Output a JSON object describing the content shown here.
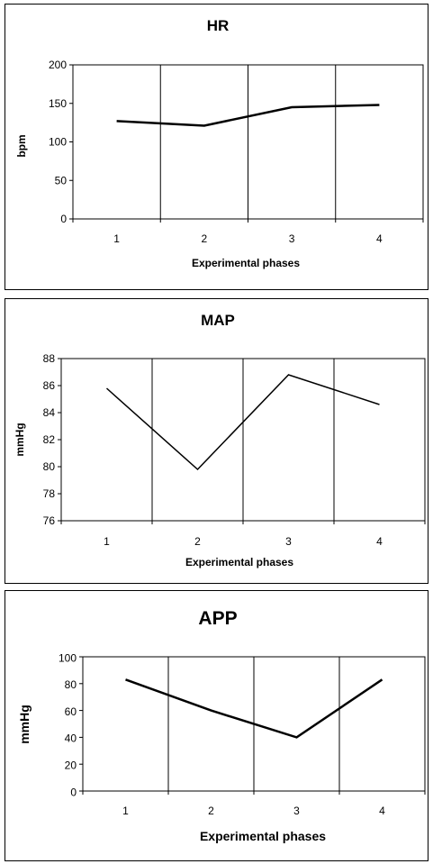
{
  "chart_data": [
    {
      "type": "line",
      "title": "HR",
      "xlabel": "Experimental phases",
      "ylabel": "bpm",
      "categories": [
        "1",
        "2",
        "3",
        "4"
      ],
      "series": [
        {
          "values": [
            127,
            121,
            145,
            148
          ]
        }
      ],
      "ylim": [
        0,
        200
      ],
      "yticks": [
        "0",
        "50",
        "100",
        "150",
        "200"
      ],
      "grid": "vertical separators between categories",
      "line_color": "#000000"
    },
    {
      "type": "line",
      "title": "MAP",
      "xlabel": "Experimental phases",
      "ylabel": "mmHg",
      "categories": [
        "1",
        "2",
        "3",
        "4"
      ],
      "series": [
        {
          "values": [
            85.8,
            79.8,
            86.8,
            84.6
          ]
        }
      ],
      "ylim": [
        76,
        88
      ],
      "yticks": [
        "76",
        "78",
        "80",
        "82",
        "84",
        "86",
        "88"
      ],
      "grid": "vertical separators between categories",
      "line_color": "#000000"
    },
    {
      "type": "line",
      "title": "APP",
      "xlabel": "Experimental phases",
      "ylabel": "mmHg",
      "categories": [
        "1",
        "2",
        "3",
        "4"
      ],
      "series": [
        {
          "values": [
            83,
            60,
            40,
            83
          ]
        }
      ],
      "ylim": [
        0,
        100
      ],
      "yticks": [
        "0",
        "20",
        "40",
        "60",
        "80",
        "100"
      ],
      "grid": "vertical separators between categories",
      "line_color": "#000000"
    }
  ]
}
